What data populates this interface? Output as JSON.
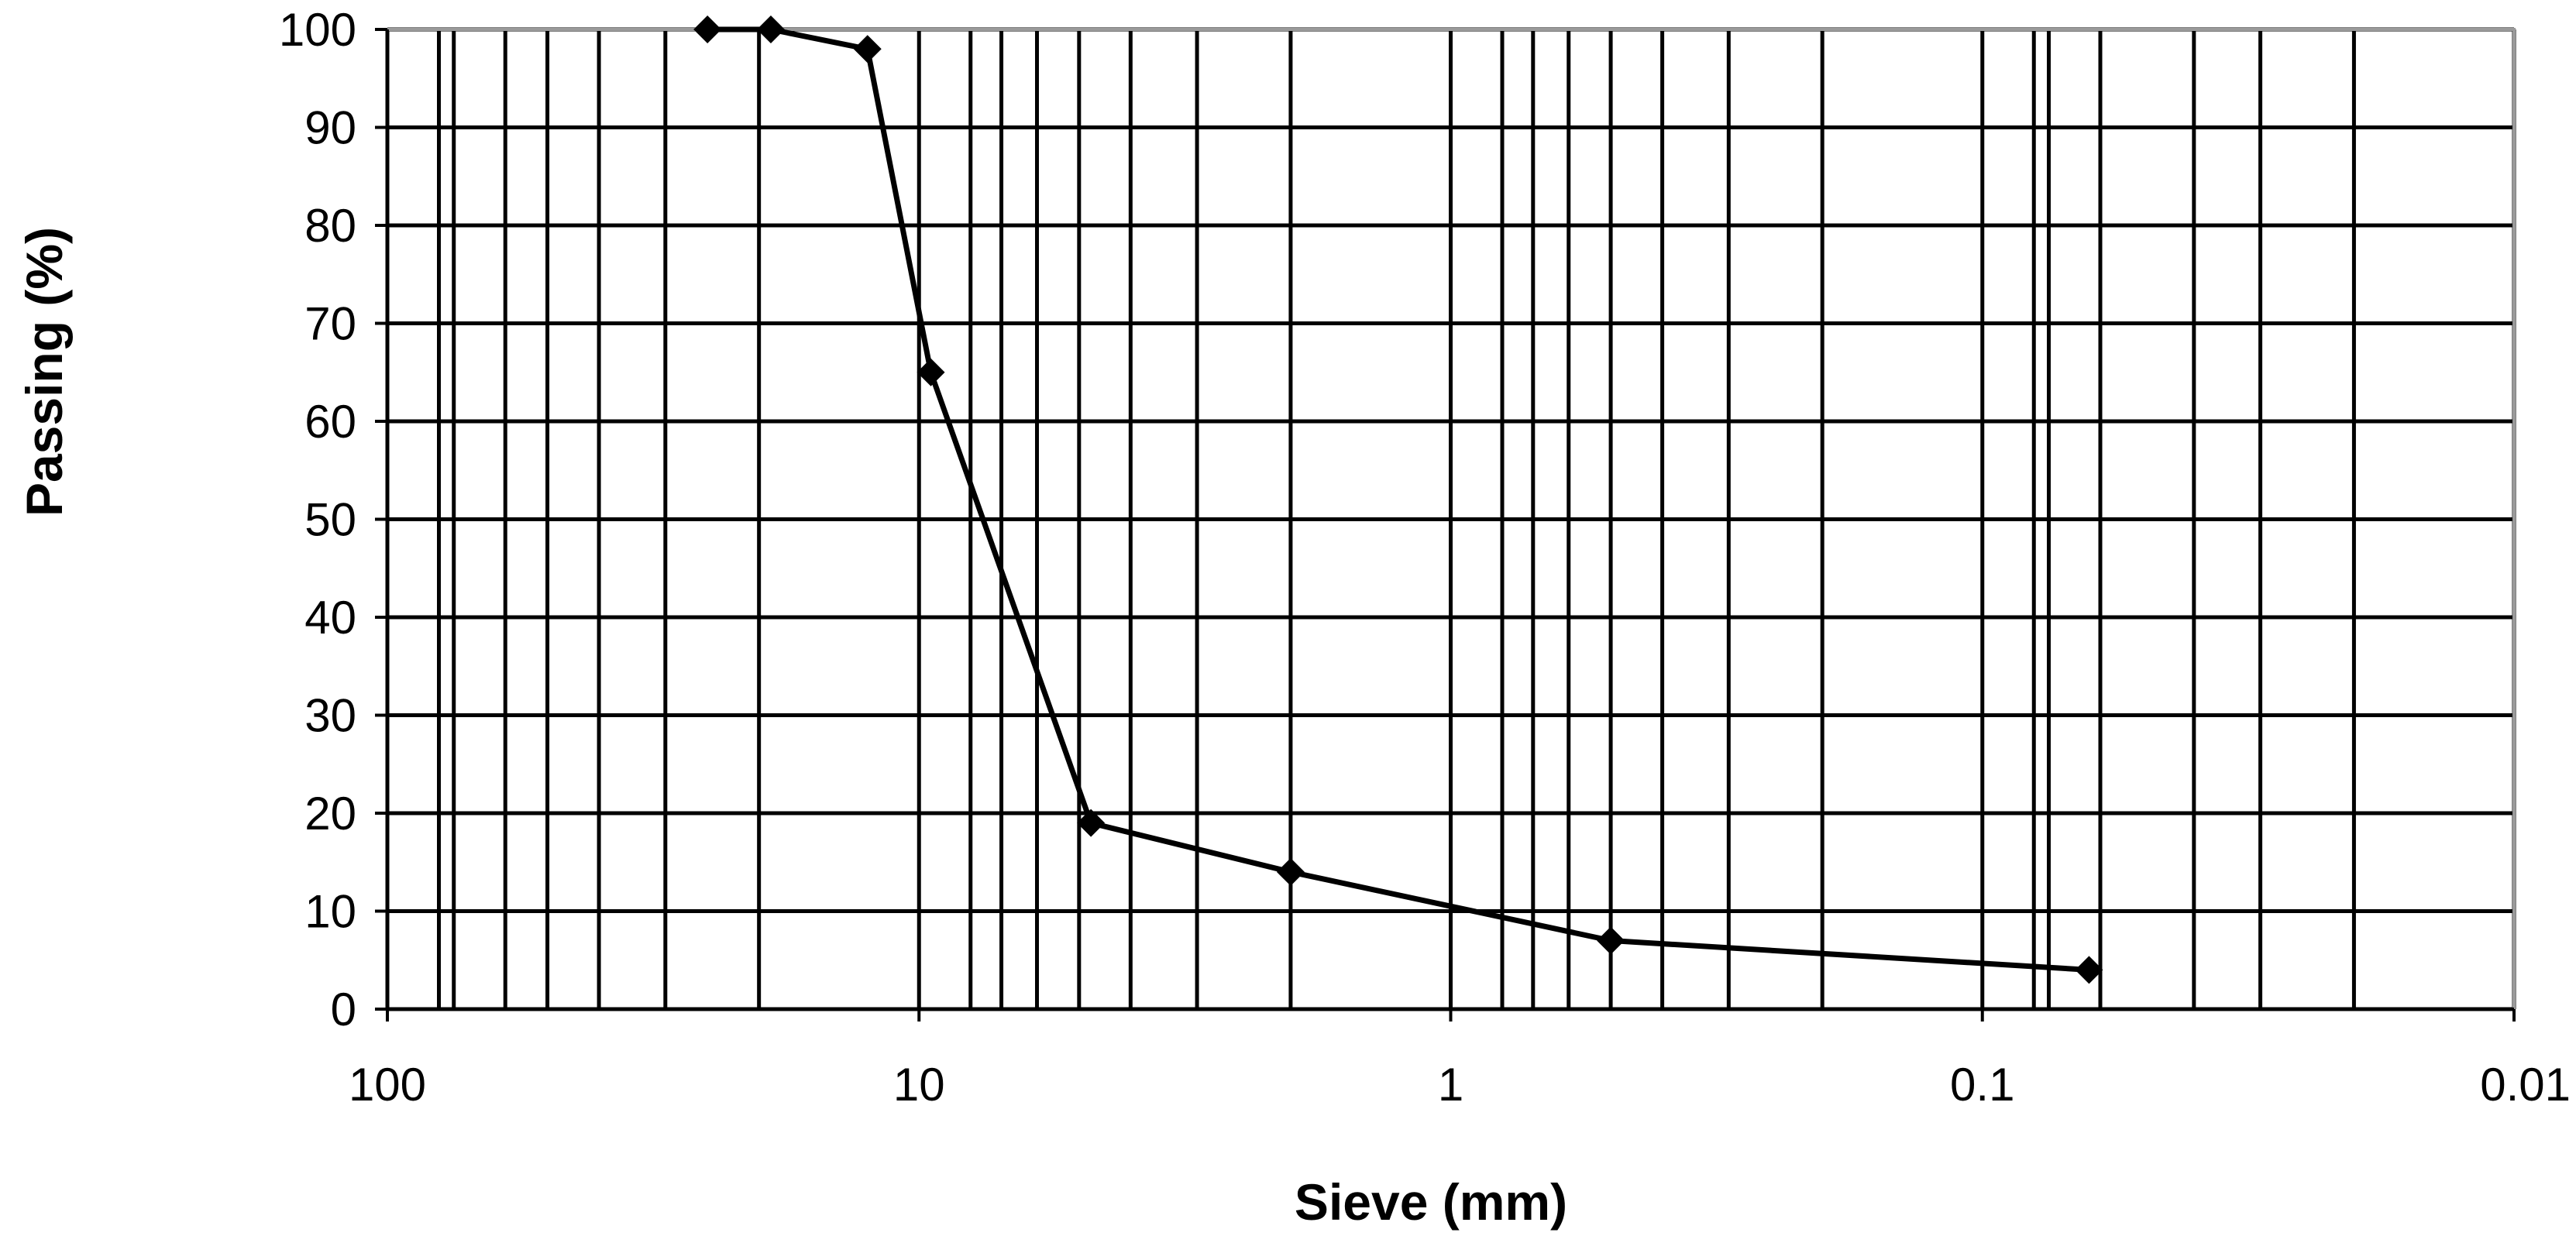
{
  "chart_data": {
    "type": "line",
    "xlabel": "Sieve (mm)",
    "ylabel": "Passing  (%)",
    "x_scale": "log",
    "x_reversed": true,
    "xlim": [
      100,
      0.01
    ],
    "ylim": [
      0,
      100
    ],
    "grid": true,
    "x_ticks": [
      "100",
      "10",
      "1",
      "0.1",
      "0.01"
    ],
    "y_ticks": [
      "0",
      "10",
      "20",
      "30",
      "40",
      "50",
      "60",
      "70",
      "80",
      "90",
      "100"
    ],
    "x_minor_gridlines": [
      80,
      75,
      60,
      50,
      40,
      30,
      20,
      8,
      7,
      6,
      5,
      4,
      3,
      2,
      0.8,
      0.7,
      0.6,
      0.5,
      0.4,
      0.3,
      0.2,
      0.08,
      0.075,
      0.06,
      0.04,
      0.03,
      0.02
    ],
    "series": [
      {
        "x": [
          25,
          19,
          12.5,
          9.5,
          4.75,
          2.0,
          0.5,
          0.063
        ],
        "y": [
          100,
          100,
          98,
          65,
          19,
          14,
          7,
          4
        ]
      }
    ]
  }
}
